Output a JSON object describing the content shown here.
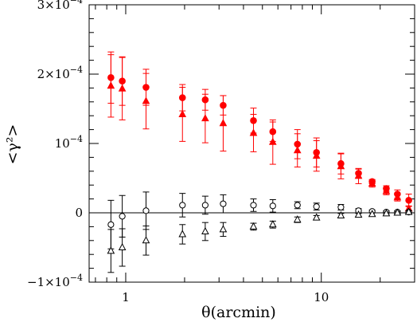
{
  "chart_data": {
    "type": "scatter",
    "title": "",
    "xlabel": "θ(arcmin)",
    "ylabel": "<γ²>",
    "x_scale": "log",
    "xlim": [
      0.65,
      30
    ],
    "ylim": [
      -0.0001,
      0.0003
    ],
    "x_tick_labels": [
      {
        "value": 1,
        "text": "1"
      },
      {
        "value": 10,
        "text": "10"
      }
    ],
    "y_tick_labels": [
      {
        "value": 0.0003,
        "mantissa": "3×10",
        "exp": "−4"
      },
      {
        "value": 0.0002,
        "mantissa": "2×10",
        "exp": "−4"
      },
      {
        "value": 0.0001,
        "mantissa": "10",
        "exp": "−4"
      },
      {
        "value": 0,
        "mantissa": "0",
        "exp": ""
      },
      {
        "value": -0.0001,
        "mantissa": "−1×10",
        "exp": "−4"
      }
    ],
    "grid": false,
    "zero_line": true,
    "series": [
      {
        "marker": "filled-circle",
        "color": "#ff0000",
        "points": [
          {
            "x": 0.84,
            "y": 0.000195,
            "err": 3.7e-05
          },
          {
            "x": 0.96,
            "y": 0.00019,
            "err": 3.5e-05
          },
          {
            "x": 1.27,
            "y": 0.000181,
            "err": 2.6e-05
          },
          {
            "x": 1.95,
            "y": 0.000166,
            "err": 1.9e-05
          },
          {
            "x": 2.55,
            "y": 0.000163,
            "err": 1.5e-05
          },
          {
            "x": 3.15,
            "y": 0.000155,
            "err": 1.4e-05
          },
          {
            "x": 4.5,
            "y": 0.000133,
            "err": 1.8e-05
          },
          {
            "x": 5.65,
            "y": 0.000117,
            "err": 1.4e-05
          },
          {
            "x": 7.55,
            "y": 9.9e-05,
            "err": 2.1e-05
          },
          {
            "x": 9.45,
            "y": 8.7e-05,
            "err": 2.1e-05
          },
          {
            "x": 12.6,
            "y": 7.1e-05,
            "err": 1.5e-05
          },
          {
            "x": 15.5,
            "y": 5.7e-05,
            "err": 6e-06
          },
          {
            "x": 18.2,
            "y": 4.5e-05,
            "err": 3e-06
          },
          {
            "x": 21.5,
            "y": 3.5e-05,
            "err": 4e-06
          },
          {
            "x": 24.5,
            "y": 2.7e-05,
            "err": 6e-06
          },
          {
            "x": 28.0,
            "y": 1.8e-05,
            "err": 9e-06
          }
        ]
      },
      {
        "marker": "filled-triangle",
        "color": "#ff0000",
        "points": [
          {
            "x": 0.84,
            "y": 0.000183,
            "err": 4.5e-05
          },
          {
            "x": 0.96,
            "y": 0.000179,
            "err": 4.5e-05
          },
          {
            "x": 1.27,
            "y": 0.000161,
            "err": 4e-05
          },
          {
            "x": 1.95,
            "y": 0.000142,
            "err": 3.9e-05
          },
          {
            "x": 2.55,
            "y": 0.000136,
            "err": 3.5e-05
          },
          {
            "x": 3.15,
            "y": 0.000129,
            "err": 4e-05
          },
          {
            "x": 4.5,
            "y": 0.000115,
            "err": 2.7e-05
          },
          {
            "x": 5.65,
            "y": 0.000102,
            "err": 3.2e-05
          },
          {
            "x": 7.55,
            "y": 9e-05,
            "err": 2.4e-05
          },
          {
            "x": 9.45,
            "y": 8.2e-05,
            "err": 2.2e-05
          },
          {
            "x": 12.6,
            "y": 6.7e-05,
            "err": 1.8e-05
          },
          {
            "x": 15.5,
            "y": 5.3e-05,
            "err": 1.1e-05
          },
          {
            "x": 18.2,
            "y": 4.2e-05,
            "err": 5e-06
          },
          {
            "x": 21.5,
            "y": 3.1e-05,
            "err": 5e-06
          },
          {
            "x": 24.5,
            "y": 2.2e-05,
            "err": 5e-06
          },
          {
            "x": 28.0,
            "y": 6e-06,
            "err": 4e-06
          }
        ]
      },
      {
        "marker": "open-circle",
        "color": "#000000",
        "points": [
          {
            "x": 0.84,
            "y": -1.7e-05,
            "err": 3.5e-05
          },
          {
            "x": 0.96,
            "y": -5e-06,
            "err": 3e-05
          },
          {
            "x": 1.27,
            "y": 3e-06,
            "err": 2.7e-05
          },
          {
            "x": 1.95,
            "y": 1.1e-05,
            "err": 1.7e-05
          },
          {
            "x": 2.55,
            "y": 1.1e-05,
            "err": 1.3e-05
          },
          {
            "x": 3.15,
            "y": 1.3e-05,
            "err": 1.3e-05
          },
          {
            "x": 4.5,
            "y": 1.1e-05,
            "err": 9e-06
          },
          {
            "x": 5.65,
            "y": 1e-05,
            "err": 9e-06
          },
          {
            "x": 7.55,
            "y": 1.1e-05,
            "err": 5e-06
          },
          {
            "x": 9.45,
            "y": 9e-06,
            "err": 5e-06
          },
          {
            "x": 12.6,
            "y": 8e-06,
            "err": 4e-06
          },
          {
            "x": 15.5,
            "y": 3e-06,
            "err": 3e-06
          },
          {
            "x": 18.2,
            "y": 2e-06,
            "err": 2e-06
          },
          {
            "x": 21.5,
            "y": 1e-06,
            "err": 2e-06
          },
          {
            "x": 24.5,
            "y": 1e-06,
            "err": 2e-06
          },
          {
            "x": 28.0,
            "y": 1e-06,
            "err": 2e-06
          }
        ]
      },
      {
        "marker": "open-triangle",
        "color": "#000000",
        "points": [
          {
            "x": 0.84,
            "y": -5.5e-05,
            "err": 3.1e-05
          },
          {
            "x": 0.96,
            "y": -5e-05,
            "err": 2.7e-05
          },
          {
            "x": 1.27,
            "y": -4e-05,
            "err": 2.1e-05
          },
          {
            "x": 1.95,
            "y": -3.1e-05,
            "err": 1.4e-05
          },
          {
            "x": 2.55,
            "y": -2.7e-05,
            "err": 1.3e-05
          },
          {
            "x": 3.15,
            "y": -2.4e-05,
            "err": 1e-05
          },
          {
            "x": 4.5,
            "y": -2e-05,
            "err": 5e-06
          },
          {
            "x": 5.65,
            "y": -1.7e-05,
            "err": 5e-06
          },
          {
            "x": 7.55,
            "y": -1e-05,
            "err": 4e-06
          },
          {
            "x": 9.45,
            "y": -7e-06,
            "err": 3e-06
          },
          {
            "x": 12.6,
            "y": -4e-06,
            "err": 3e-06
          },
          {
            "x": 15.5,
            "y": -3e-06,
            "err": 2e-06
          },
          {
            "x": 18.2,
            "y": -2e-06,
            "err": 2e-06
          },
          {
            "x": 21.5,
            "y": -1e-06,
            "err": 2e-06
          },
          {
            "x": 24.5,
            "y": 0.0,
            "err": 2e-06
          },
          {
            "x": 28.0,
            "y": 1e-06,
            "err": 2e-06
          }
        ]
      }
    ]
  }
}
